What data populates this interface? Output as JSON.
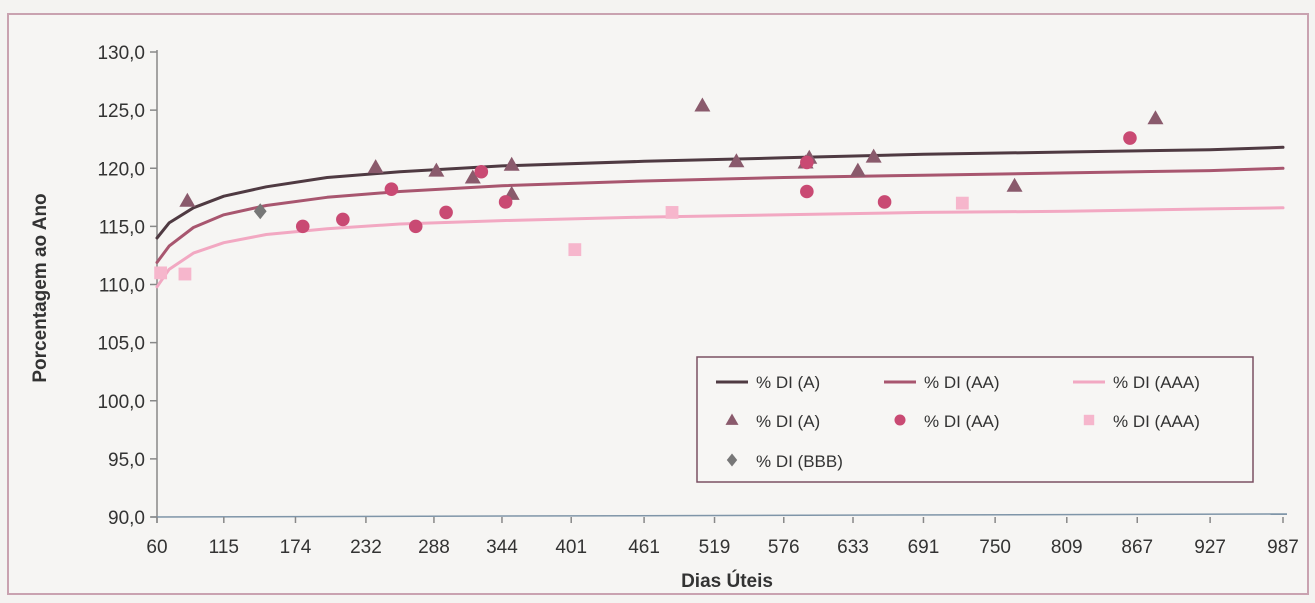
{
  "chart_data": {
    "type": "scatter",
    "xlabel": "Dias Úteis",
    "ylabel": "Porcentagem ao Ano",
    "x_tick_labels": [
      "60",
      "115",
      "174",
      "232",
      "288",
      "344",
      "401",
      "461",
      "519",
      "576",
      "633",
      "691",
      "750",
      "809",
      "867",
      "927",
      "987"
    ],
    "y_tick_labels": [
      "90,0",
      "95,0",
      "100,0",
      "105,0",
      "110,0",
      "115,0",
      "120,0",
      "125,0",
      "130,0"
    ],
    "xlim": [
      60,
      987
    ],
    "ylim": [
      90,
      130
    ],
    "grid": false,
    "legend_position": "bottom-right",
    "legend": [
      {
        "label": "% DI (A)",
        "marker": "line",
        "color": "#4f3a42"
      },
      {
        "label": "% DI (AA)",
        "marker": "line",
        "color": "#a8566f"
      },
      {
        "label": "% DI (AAA)",
        "marker": "line",
        "color": "#f2a8c2"
      },
      {
        "label": "% DI (A)",
        "marker": "triangle",
        "color": "#8a5a6c"
      },
      {
        "label": "% DI (AA)",
        "marker": "circle",
        "color": "#c94a73"
      },
      {
        "label": "% DI (AAA)",
        "marker": "square",
        "color": "#f6b6cc"
      },
      {
        "label": "% DI (BBB)",
        "marker": "diamond",
        "color": "#777777"
      }
    ],
    "series": [
      {
        "name": "% DI (A)",
        "kind": "line",
        "color": "#4f3a42",
        "points": [
          [
            60,
            114.0
          ],
          [
            70,
            115.3
          ],
          [
            90,
            116.6
          ],
          [
            115,
            117.6
          ],
          [
            150,
            118.4
          ],
          [
            200,
            119.2
          ],
          [
            260,
            119.7
          ],
          [
            344,
            120.2
          ],
          [
            461,
            120.6
          ],
          [
            576,
            120.9
          ],
          [
            691,
            121.2
          ],
          [
            809,
            121.4
          ],
          [
            927,
            121.6
          ],
          [
            987,
            121.8
          ]
        ]
      },
      {
        "name": "% DI (AA)",
        "kind": "line",
        "color": "#a8566f",
        "points": [
          [
            60,
            111.9
          ],
          [
            70,
            113.3
          ],
          [
            90,
            114.9
          ],
          [
            115,
            116.0
          ],
          [
            150,
            116.8
          ],
          [
            200,
            117.5
          ],
          [
            260,
            118.0
          ],
          [
            344,
            118.5
          ],
          [
            461,
            118.9
          ],
          [
            576,
            119.2
          ],
          [
            691,
            119.4
          ],
          [
            809,
            119.6
          ],
          [
            927,
            119.8
          ],
          [
            987,
            120.0
          ]
        ]
      },
      {
        "name": "% DI (AAA)",
        "kind": "line",
        "color": "#f2a8c2",
        "points": [
          [
            60,
            109.8
          ],
          [
            70,
            111.3
          ],
          [
            90,
            112.7
          ],
          [
            115,
            113.6
          ],
          [
            150,
            114.3
          ],
          [
            200,
            114.8
          ],
          [
            260,
            115.2
          ],
          [
            344,
            115.5
          ],
          [
            461,
            115.8
          ],
          [
            576,
            116.0
          ],
          [
            691,
            116.2
          ],
          [
            809,
            116.3
          ],
          [
            927,
            116.5
          ],
          [
            987,
            116.6
          ]
        ]
      },
      {
        "name": "% DI (A)",
        "kind": "scatter",
        "marker": "triangle",
        "color": "#8a5a6c",
        "points": [
          [
            85,
            117.2
          ],
          [
            240,
            120.1
          ],
          [
            290,
            119.8
          ],
          [
            320,
            119.2
          ],
          [
            352,
            120.3
          ],
          [
            352,
            117.8
          ],
          [
            509,
            125.4
          ],
          [
            537,
            120.6
          ],
          [
            594,
            120.5
          ],
          [
            597,
            120.9
          ],
          [
            637,
            119.8
          ],
          [
            650,
            121.0
          ],
          [
            766,
            118.5
          ],
          [
            882,
            124.3
          ]
        ]
      },
      {
        "name": "% DI (AA)",
        "kind": "scatter",
        "marker": "circle",
        "color": "#c94a73",
        "points": [
          [
            180,
            115.0
          ],
          [
            213,
            115.6
          ],
          [
            253,
            118.2
          ],
          [
            273,
            115.0
          ],
          [
            298,
            116.2
          ],
          [
            327,
            119.7
          ],
          [
            347,
            117.1
          ],
          [
            595,
            120.5
          ],
          [
            595,
            118.0
          ],
          [
            659,
            117.1
          ],
          [
            861,
            122.6
          ]
        ]
      },
      {
        "name": "% DI (AAA)",
        "kind": "scatter",
        "marker": "square",
        "color": "#f6b6cc",
        "points": [
          [
            63,
            111.0
          ],
          [
            83,
            110.9
          ],
          [
            404,
            113.0
          ],
          [
            484,
            116.2
          ],
          [
            723,
            117.0
          ]
        ]
      },
      {
        "name": "% DI (BBB)",
        "kind": "scatter",
        "marker": "diamond",
        "color": "#777777",
        "points": [
          [
            145,
            116.3
          ]
        ]
      }
    ]
  }
}
